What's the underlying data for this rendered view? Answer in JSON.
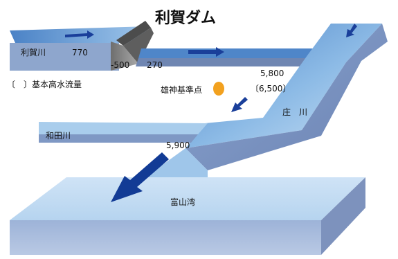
{
  "diagram": {
    "dam_name": "利賀ダム",
    "legend_text": "〔　〕基本高水流量",
    "reference_point": "雄神基準点",
    "rivers": {
      "toga": "利賀川",
      "wada": "和田川",
      "sho": "庄　川",
      "bay": "富山湾"
    },
    "flows": {
      "toga_inflow": "770",
      "dam_cut": "-500",
      "dam_release": "270",
      "ogami_plan": "5,800",
      "ogami_basic": "〔6,500〕",
      "lower": "5,900"
    },
    "colors": {
      "water_top": "#a9cdec",
      "water_deep": "#4f86c9",
      "side_light": "#8ea6cd",
      "side_dark": "#6f86b2",
      "arrow": "#1a3f9a",
      "dam": "#8a8a8a",
      "ref_point": "#f2a11f"
    }
  }
}
